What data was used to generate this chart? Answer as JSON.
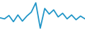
{
  "y_values": [
    0.42,
    0.38,
    0.5,
    0.28,
    0.52,
    0.3,
    0.48,
    0.62,
    0.95,
    0.05,
    0.75,
    0.55,
    0.7,
    0.45,
    0.58,
    0.38,
    0.52,
    0.35,
    0.48,
    0.38
  ],
  "line_color": "#2196c8",
  "line_width": 1.3,
  "background_color": "#ffffff",
  "ylim_min": -0.05,
  "ylim_max": 1.05
}
